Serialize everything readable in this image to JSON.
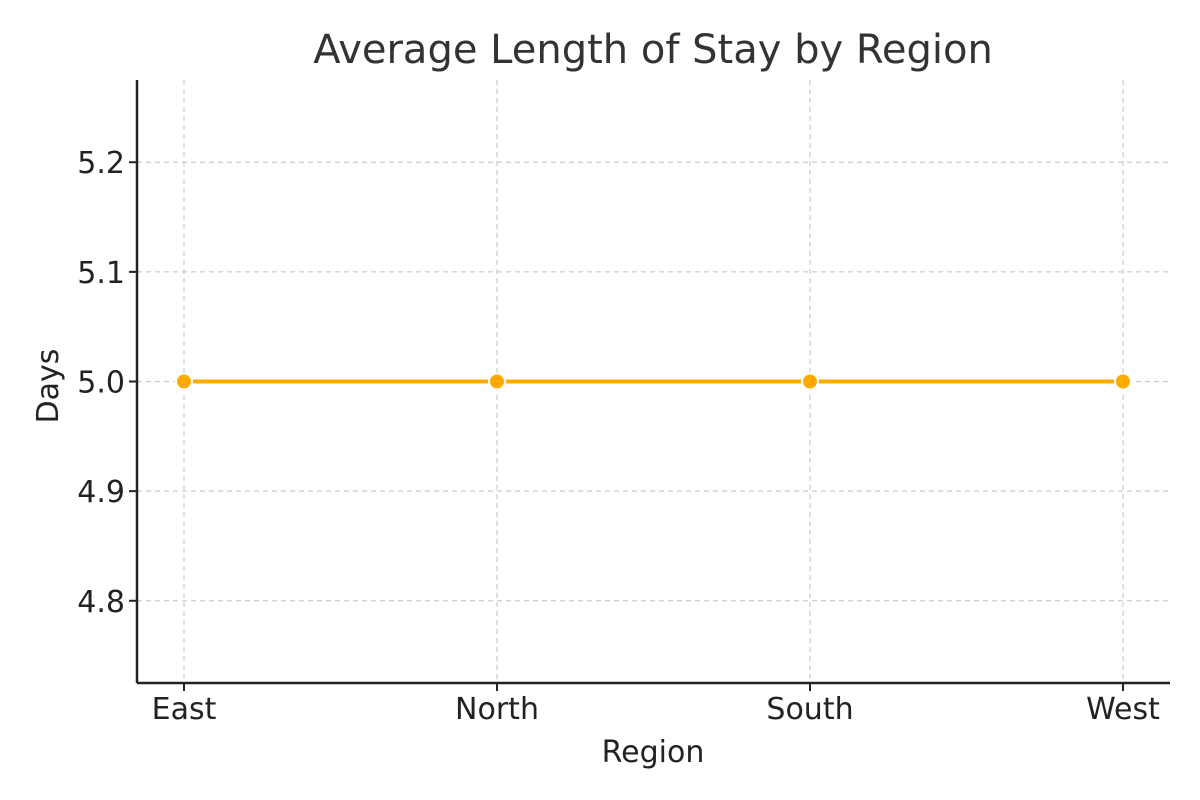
{
  "chart_data": {
    "type": "line",
    "title": "Average Length of Stay by Region",
    "xlabel": "Region",
    "ylabel": "Days",
    "categories": [
      "East",
      "North",
      "South",
      "West"
    ],
    "series": [
      {
        "values": [
          5.0,
          5.0,
          5.0,
          5.0
        ],
        "color": "#FFAA00"
      }
    ],
    "ylim": [
      4.725,
      5.275
    ],
    "yticks": [
      4.8,
      4.9,
      5.0,
      5.1,
      5.2
    ],
    "ytick_labels": [
      "4.8",
      "4.9",
      "5.0",
      "5.1",
      "5.2"
    ],
    "grid": true,
    "grid_color": "#cccccc",
    "axis_color": "#222222",
    "marker": "circle"
  }
}
